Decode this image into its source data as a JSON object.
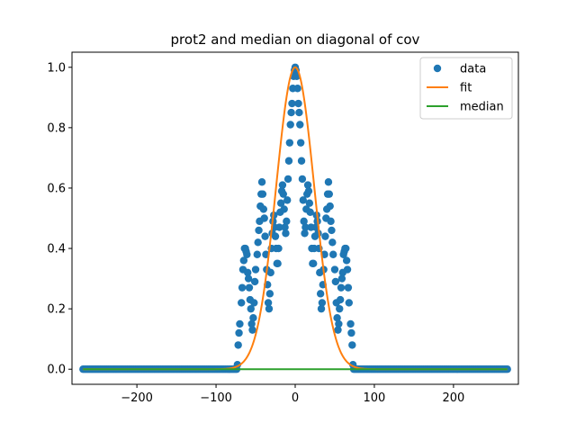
{
  "chart_data": {
    "type": "scatter",
    "title": "prot2 and median on diagonal of cov",
    "xlabel": "",
    "ylabel": "",
    "xlim": [
      -282,
      282
    ],
    "ylim": [
      -0.05,
      1.05
    ],
    "x_ticks": [
      -200,
      -100,
      0,
      100,
      200
    ],
    "x_tick_labels": [
      "−200",
      "−100",
      "0",
      "100",
      "200"
    ],
    "y_ticks": [
      0.0,
      0.2,
      0.4,
      0.6,
      0.8,
      1.0
    ],
    "y_tick_labels": [
      "0.0",
      "0.2",
      "0.4",
      "0.6",
      "0.8",
      "1.0"
    ],
    "grid": false,
    "legend_position": "top-right",
    "colors": {
      "data": "#1f77b4",
      "fit": "#ff7f0e",
      "median": "#2ca02c"
    },
    "series": [
      {
        "name": "data",
        "kind": "scatter",
        "x_range": [
          -268,
          268
        ],
        "zero_outside_abs": 72,
        "points": [
          [
            -72,
            0.08
          ],
          [
            -71,
            0.12
          ],
          [
            -70,
            0.15
          ],
          [
            -68,
            0.22
          ],
          [
            -67,
            0.27
          ],
          [
            -66,
            0.33
          ],
          [
            -65,
            0.36
          ],
          [
            -64,
            0.4
          ],
          [
            -63,
            0.4
          ],
          [
            -62,
            0.39
          ],
          [
            -61,
            0.38
          ],
          [
            -60,
            0.32
          ],
          [
            -59,
            0.3
          ],
          [
            -58,
            0.27
          ],
          [
            -57,
            0.23
          ],
          [
            -56,
            0.2
          ],
          [
            -55,
            0.15
          ],
          [
            -54,
            0.13
          ],
          [
            -53,
            0.17
          ],
          [
            -52,
            0.22
          ],
          [
            -51,
            0.29
          ],
          [
            -50,
            0.33
          ],
          [
            -48,
            0.38
          ],
          [
            -47,
            0.42
          ],
          [
            -46,
            0.46
          ],
          [
            -45,
            0.49
          ],
          [
            -44,
            0.54
          ],
          [
            -43,
            0.58
          ],
          [
            -42,
            0.62
          ],
          [
            -41,
            0.58
          ],
          [
            -40,
            0.53
          ],
          [
            -39,
            0.5
          ],
          [
            -38,
            0.44
          ],
          [
            -37,
            0.38
          ],
          [
            -36,
            0.33
          ],
          [
            -35,
            0.28
          ],
          [
            -34,
            0.22
          ],
          [
            -33,
            0.2
          ],
          [
            -32,
            0.25
          ],
          [
            -31,
            0.32
          ],
          [
            -30,
            0.4
          ],
          [
            -29,
            0.45
          ],
          [
            -28,
            0.49
          ],
          [
            -27,
            0.51
          ],
          [
            -26,
            0.47
          ],
          [
            -25,
            0.44
          ],
          [
            -24,
            0.4
          ],
          [
            -23,
            0.35
          ],
          [
            -22,
            0.35
          ],
          [
            -21,
            0.4
          ],
          [
            -20,
            0.47
          ],
          [
            -19,
            0.52
          ],
          [
            -18,
            0.55
          ],
          [
            -17,
            0.59
          ],
          [
            -16,
            0.61
          ],
          [
            -15,
            0.58
          ],
          [
            -14,
            0.53
          ],
          [
            -13,
            0.47
          ],
          [
            -12,
            0.45
          ],
          [
            -11,
            0.49
          ],
          [
            -10,
            0.56
          ],
          [
            -9,
            0.63
          ],
          [
            -8,
            0.69
          ],
          [
            -7,
            0.75
          ],
          [
            -6,
            0.81
          ],
          [
            -5,
            0.85
          ],
          [
            -4,
            0.88
          ],
          [
            -3,
            0.93
          ],
          [
            -2,
            0.97
          ],
          [
            -1,
            0.99
          ],
          [
            0,
            1.0
          ],
          [
            1,
            0.99
          ],
          [
            2,
            0.97
          ],
          [
            3,
            0.93
          ],
          [
            4,
            0.88
          ],
          [
            5,
            0.85
          ],
          [
            6,
            0.81
          ],
          [
            7,
            0.75
          ],
          [
            8,
            0.69
          ],
          [
            9,
            0.63
          ],
          [
            10,
            0.56
          ],
          [
            11,
            0.49
          ],
          [
            12,
            0.45
          ],
          [
            13,
            0.47
          ],
          [
            14,
            0.53
          ],
          [
            15,
            0.58
          ],
          [
            16,
            0.61
          ],
          [
            17,
            0.59
          ],
          [
            18,
            0.55
          ],
          [
            19,
            0.52
          ],
          [
            20,
            0.47
          ],
          [
            21,
            0.4
          ],
          [
            22,
            0.35
          ],
          [
            23,
            0.35
          ],
          [
            24,
            0.4
          ],
          [
            25,
            0.44
          ],
          [
            26,
            0.47
          ],
          [
            27,
            0.51
          ],
          [
            28,
            0.49
          ],
          [
            29,
            0.45
          ],
          [
            30,
            0.4
          ],
          [
            31,
            0.32
          ],
          [
            32,
            0.25
          ],
          [
            33,
            0.2
          ],
          [
            34,
            0.22
          ],
          [
            35,
            0.28
          ],
          [
            36,
            0.33
          ],
          [
            37,
            0.38
          ],
          [
            38,
            0.44
          ],
          [
            39,
            0.5
          ],
          [
            40,
            0.53
          ],
          [
            41,
            0.58
          ],
          [
            42,
            0.62
          ],
          [
            43,
            0.58
          ],
          [
            44,
            0.54
          ],
          [
            45,
            0.49
          ],
          [
            46,
            0.46
          ],
          [
            47,
            0.42
          ],
          [
            48,
            0.38
          ],
          [
            50,
            0.33
          ],
          [
            51,
            0.29
          ],
          [
            52,
            0.22
          ],
          [
            53,
            0.17
          ],
          [
            54,
            0.13
          ],
          [
            55,
            0.15
          ],
          [
            56,
            0.2
          ],
          [
            57,
            0.23
          ],
          [
            58,
            0.27
          ],
          [
            59,
            0.3
          ],
          [
            60,
            0.32
          ],
          [
            61,
            0.38
          ],
          [
            62,
            0.39
          ],
          [
            63,
            0.4
          ],
          [
            64,
            0.4
          ],
          [
            65,
            0.36
          ],
          [
            66,
            0.33
          ],
          [
            67,
            0.27
          ],
          [
            68,
            0.22
          ],
          [
            70,
            0.15
          ],
          [
            71,
            0.12
          ],
          [
            72,
            0.08
          ],
          [
            -73,
            0.015
          ],
          [
            73,
            0.015
          ]
        ]
      },
      {
        "name": "fit",
        "kind": "line",
        "model": "gaussian",
        "amplitude": 1.0,
        "center": 0,
        "sigma": 24,
        "x_range": [
          -268,
          268
        ]
      },
      {
        "name": "median",
        "kind": "line",
        "x": [
          -268,
          268
        ],
        "y": [
          0.0,
          0.0
        ]
      }
    ]
  }
}
